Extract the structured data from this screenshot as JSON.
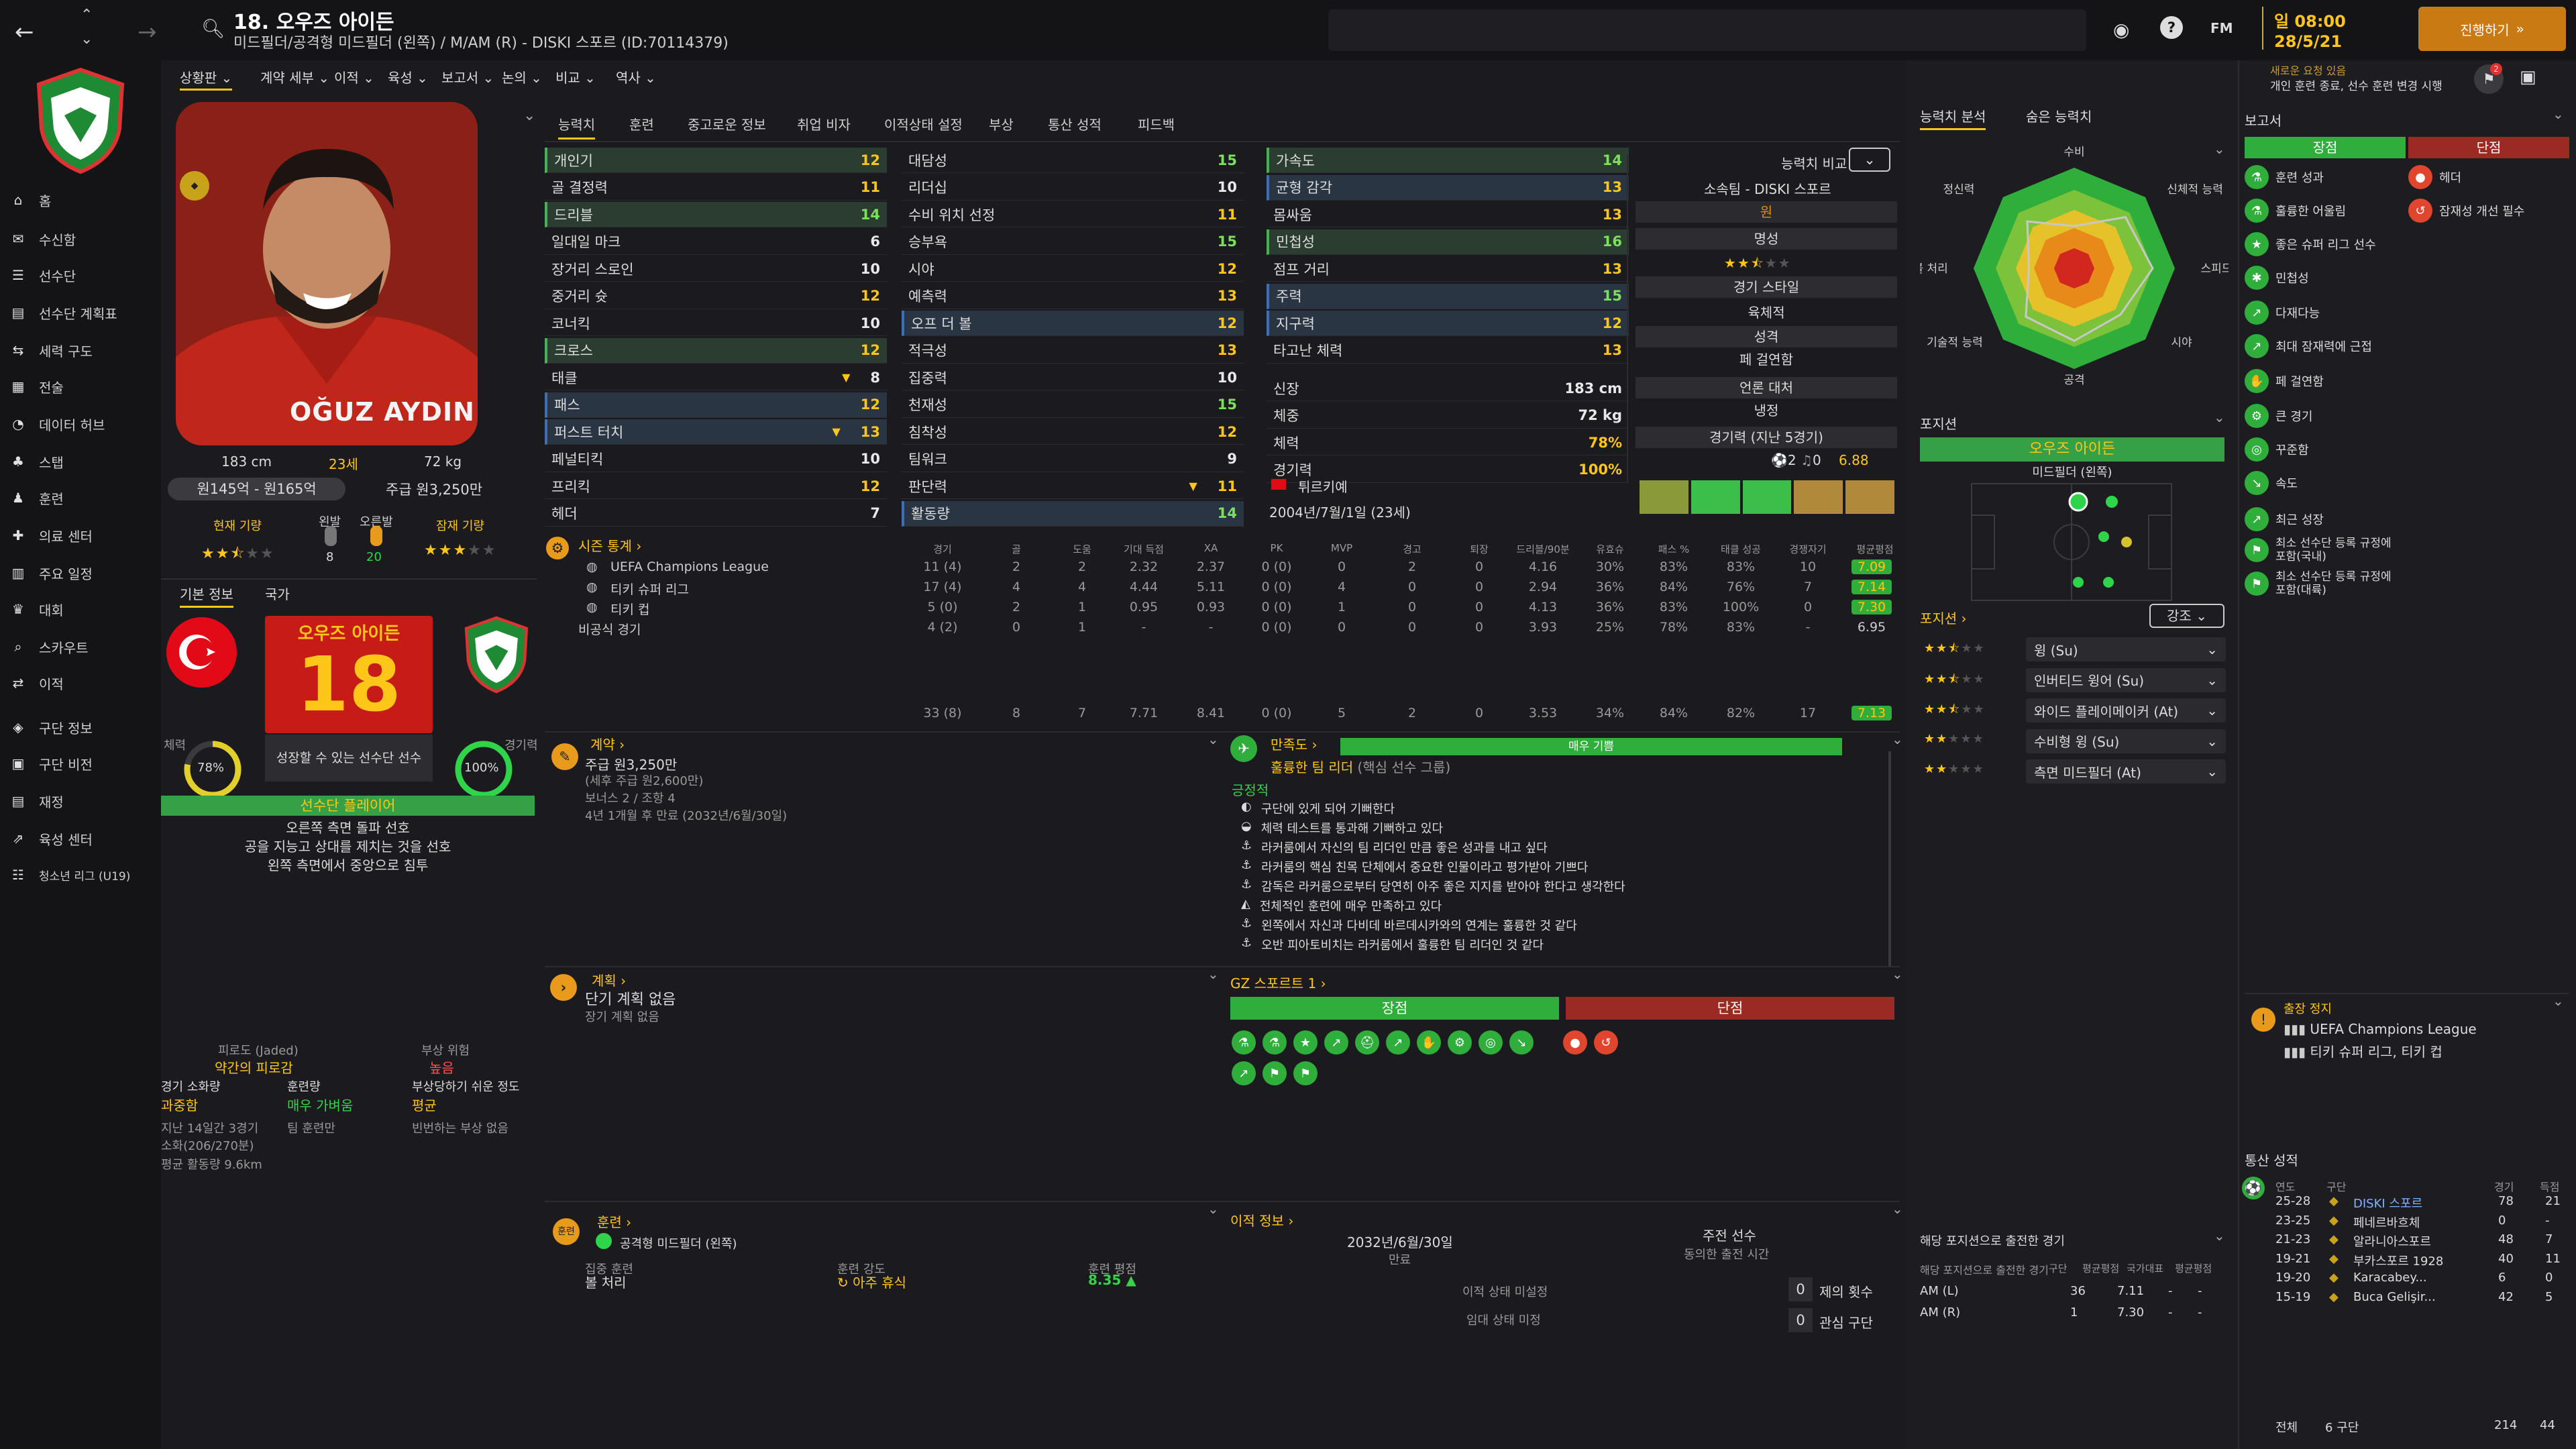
{
  "header": {
    "player_title": "18. 오우즈 아이든",
    "player_sub": "미드필더/공격형 미드필더 (왼쪽) / M/AM (R) - DISKI 스포르 (ID:70114379)",
    "date_day": "일 08:00",
    "date": "28/5/21",
    "continue_label": "진행하기",
    "notice_line1": "새로운 요청 있음",
    "notice_line2": "개인 훈련 종료, 선수 훈련 변경 시행",
    "fm_label": "FM"
  },
  "sidebar": {
    "items": [
      "홈",
      "수신함",
      "선수단",
      "선수단 계획표",
      "세력 구도",
      "전술",
      "데이터 허브",
      "스탭",
      "훈련",
      "의료 센터",
      "주요 일정",
      "대회",
      "스카우트",
      "이적",
      "구단 정보",
      "구단 비전",
      "재정",
      "육성 센터",
      "청소년 리그 (U19)"
    ]
  },
  "menu": {
    "items": [
      "상황판",
      "계약 세부",
      "이적",
      "육성",
      "보고서",
      "논의",
      "비교",
      "역사"
    ]
  },
  "profile": {
    "photo_name": "OĞUZ AYDIN",
    "height": "183 cm",
    "age": "23세",
    "weight": "72 kg",
    "value": "원145억 - 원165억",
    "wage": "주급 원3,250만",
    "current_ability_label": "현재 기량",
    "potential_label": "잠재 기량",
    "foot_left_label": "왼발",
    "foot_right_label": "오른발",
    "foot_left_val": "8",
    "foot_right_val": "20",
    "current_ability_stars": 2.5,
    "potential_stars": 3
  },
  "info_tabs": [
    "기본 정보",
    "국가"
  ],
  "card": {
    "name": "오우즈 아이든",
    "number": "18",
    "tag": "성장할 수 있는 선수단 선수",
    "fitness_label": "체력",
    "fitness": "78%",
    "fitness_value": 78,
    "sharp_label": "경기력",
    "sharp": "100%",
    "sharp_value": 100,
    "role": "선수단 플레이어",
    "desc1": "오른쪽 측면 돌파 선호",
    "desc2": "공을 지능고 상대를 제치는 것을 선호",
    "desc3": "왼쪽 측면에서 중앙으로 침투"
  },
  "condition": {
    "fatigue_label": "피로도 (Jaded)",
    "fatigue": "약간의 피로감",
    "injury_risk_label": "부상 위험",
    "injury_risk": "높음",
    "load_label": "경기 소화량",
    "load": "과중함",
    "training_label": "훈련량",
    "training": "매우 가벼움",
    "prone_label": "부상당하기 쉬운 정도",
    "prone": "평균",
    "load_detail1": "지난 14일간 3경기",
    "load_detail2": "소화(206/270분)",
    "load_detail3": "평균 활동량 9.6km",
    "training_detail": "팀 훈련만",
    "prone_detail": "빈번하는 부상 없음"
  },
  "tabs": [
    "능력치",
    "훈련",
    "중고로운 정보",
    "취업 비자",
    "이적상태 설정",
    "부상",
    "통산 성적",
    "피드백"
  ],
  "attributes": {
    "technical": [
      {
        "name": "개인기",
        "value": "12",
        "hl": "green"
      },
      {
        "name": "골 결정력",
        "value": "11"
      },
      {
        "name": "드리블",
        "value": "14",
        "hl": "green"
      },
      {
        "name": "일대일 마크",
        "value": "6"
      },
      {
        "name": "장거리 스로인",
        "value": "10"
      },
      {
        "name": "중거리 슛",
        "value": "12"
      },
      {
        "name": "코너킥",
        "value": "10"
      },
      {
        "name": "크로스",
        "value": "12",
        "hl": "green"
      },
      {
        "name": "태클",
        "value": "8",
        "arrow": true
      },
      {
        "name": "패스",
        "value": "12",
        "hl": "blue"
      },
      {
        "name": "퍼스트 터치",
        "value": "13",
        "hl": "blue",
        "arrow": true
      },
      {
        "name": "페널티킥",
        "value": "10"
      },
      {
        "name": "프리킥",
        "value": "12"
      },
      {
        "name": "헤더",
        "value": "7"
      }
    ],
    "mental": [
      {
        "name": "대담성",
        "value": "15"
      },
      {
        "name": "리더십",
        "value": "10"
      },
      {
        "name": "수비 위치 선정",
        "value": "11"
      },
      {
        "name": "승부욕",
        "value": "15"
      },
      {
        "name": "시야",
        "value": "12"
      },
      {
        "name": "예측력",
        "value": "13"
      },
      {
        "name": "오프 더 볼",
        "value": "12",
        "hl": "blue"
      },
      {
        "name": "적극성",
        "value": "13"
      },
      {
        "name": "집중력",
        "value": "10"
      },
      {
        "name": "천재성",
        "value": "15"
      },
      {
        "name": "침착성",
        "value": "12"
      },
      {
        "name": "팀워크",
        "value": "9"
      },
      {
        "name": "판단력",
        "value": "11",
        "arrow": true
      },
      {
        "name": "활동량",
        "value": "14",
        "hl": "blue"
      }
    ],
    "physical": [
      {
        "name": "가속도",
        "value": "14",
        "hl": "green"
      },
      {
        "name": "균형 감각",
        "value": "13",
        "hl": "blue"
      },
      {
        "name": "몸싸움",
        "value": "13"
      },
      {
        "name": "민첩성",
        "value": "16",
        "hl": "green"
      },
      {
        "name": "점프 거리",
        "value": "13"
      },
      {
        "name": "주력",
        "value": "15",
        "hl": "blue"
      },
      {
        "name": "지구력",
        "value": "12",
        "hl": "blue"
      },
      {
        "name": "타고난 체력",
        "value": "13"
      }
    ],
    "bio": [
      {
        "name": "신장",
        "value": "183 cm"
      },
      {
        "name": "체중",
        "value": "72 kg"
      },
      {
        "name": "체력",
        "value": "78%"
      },
      {
        "name": "경기력",
        "value": "100%"
      }
    ],
    "nation": "튀르키예",
    "birth": "2004년/7월/1일 (23세)"
  },
  "compare": {
    "label": "능력치 비교",
    "club_label": "소속팀 - DISKI 스포르",
    "wage_label": "원",
    "rep_label": "명성",
    "style_label": "경기 스타일",
    "style": "육체적",
    "personality_label": "성격",
    "personality": "페 걸연함",
    "media_label": "언론 대처",
    "media": "냉정",
    "form_label": "경기력 (지난 5경기)",
    "form_goals": "2",
    "form_assists": "0",
    "form_rating": "6.88",
    "rep_stars": 2.5
  },
  "stats": {
    "header": "시즌 통계",
    "columns": [
      "경기",
      "골",
      "도움",
      "기대 득점",
      "XA",
      "PK",
      "MVP",
      "경고",
      "퇴장",
      "드리블/90분",
      "유효슈",
      "패스 %",
      "태클 성공",
      "경쟁자기",
      "평균평점"
    ],
    "rows": [
      {
        "comp": "UEFA Champions League",
        "vals": [
          "11 (4)",
          "2",
          "2",
          "2.32",
          "2.37",
          "0 (0)",
          "0",
          "2",
          "0",
          "4.16",
          "30%",
          "83%",
          "83%",
          "10"
        ],
        "rating": "7.09"
      },
      {
        "comp": "티키 슈퍼 리그",
        "vals": [
          "17 (4)",
          "4",
          "4",
          "4.44",
          "5.11",
          "0 (0)",
          "4",
          "0",
          "0",
          "2.94",
          "36%",
          "84%",
          "76%",
          "7"
        ],
        "rating": "7.14"
      },
      {
        "comp": "티키 컵",
        "vals": [
          "5 (0)",
          "2",
          "1",
          "0.95",
          "0.93",
          "0 (0)",
          "1",
          "0",
          "0",
          "4.13",
          "36%",
          "83%",
          "100%",
          "0"
        ],
        "rating": "7.30"
      },
      {
        "comp": "비공식 경기",
        "vals": [
          "4 (2)",
          "0",
          "1",
          "-",
          "-",
          "0 (0)",
          "0",
          "0",
          "0",
          "3.93",
          "25%",
          "78%",
          "83%",
          "-"
        ],
        "rating": "6.95"
      }
    ],
    "total": {
      "vals": [
        "33 (8)",
        "8",
        "7",
        "7.71",
        "8.41",
        "0 (0)",
        "5",
        "2",
        "0",
        "3.53",
        "34%",
        "84%",
        "82%",
        "17"
      ],
      "rating": "7.13"
    }
  },
  "contract": {
    "header": "계약",
    "wage": "주급 원3,250만",
    "wage_sub": "(세후 주급 원2,600만)",
    "bonus": "보너스 2 / 조항 4",
    "expiry": "4년 1개월 후 만료 (2032년/6월/30일)"
  },
  "plan": {
    "header": "계획",
    "short": "단기 계획 없음",
    "long": "장기 계획 없음"
  },
  "satisfaction": {
    "header": "만족도",
    "bar_label": "매우 기쁨",
    "leader": "훌륭한 팀 리더",
    "leader_sub": "(핵심 선수 그룹)",
    "positive_label": "긍정적",
    "items": [
      "구단에 있게 되어 기뻐한다",
      "체력 테스트를 통과해 기뻐하고 있다",
      "라커룸에서 자신의 팀 리더인 만큼 좋은 성과를 내고 싶다",
      "라커룸의 핵심 친목 단체에서 중요한 인물이라고 평가받아 기쁘다",
      "감독은 라커룸으로부터 당연히 아주 좋은 지지를 받아야 한다고 생각한다",
      "전체적인 훈련에 매우 만족하고 있다",
      "왼쪽에서 자신과 다비데 바르데시카와의 연계는 훌륭한 것 같다",
      "오반 피아토비치는 라커룸에서 훌륭한 팀 리더인 것 같다"
    ]
  },
  "scout": {
    "header": "GZ 스포르트 1",
    "pros": "장점",
    "cons": "단점"
  },
  "training": {
    "header": "훈련",
    "position": "공격형 미드필더 (왼쪽)",
    "focus_label": "집중 훈련",
    "focus": "볼 처리",
    "intensity_label": "훈련 강도",
    "intensity": "아주 휴식",
    "rating_label": "훈련 평점",
    "rating": "8.35"
  },
  "transfer": {
    "header": "이적 정보",
    "date": "2032년/6월/30일",
    "date_label": "만료",
    "status_label": "주전 선수",
    "status_sub": "동의한 출전 시간",
    "not_set1": "이적 상태 미설정",
    "not_set2": "임대 상태 미정",
    "offers_count": "0",
    "offers_label": "제의 횟수",
    "interest_count": "0",
    "interest_label": "관심 구단"
  },
  "right_tabs": [
    "능력치 분석",
    "숨은 능력치"
  ],
  "radar": {
    "labels": [
      "수비",
      "신체적 능력",
      "스피드",
      "시야",
      "공격",
      "기술적 능력",
      "공중볼 처리",
      "정신력"
    ],
    "values": [
      0.42,
      0.72,
      0.78,
      0.65,
      0.72,
      0.68,
      0.45,
      0.66
    ]
  },
  "positions": {
    "header": "포지션",
    "name": "오우즈 아이든",
    "main": "미드필더 (왼쪽)"
  },
  "roles": {
    "header": "포지션",
    "emphasis": "강조",
    "items": [
      {
        "label": "윙 (Su)",
        "stars": 2.5
      },
      {
        "label": "인버티드 윙어 (Su)",
        "stars": 2.5
      },
      {
        "label": "와이드 플레이메이커 (At)",
        "stars": 2.5
      },
      {
        "label": "수비형 윙 (Su)",
        "stars": 2
      },
      {
        "label": "측면 미드필더 (At)",
        "stars": 2
      }
    ]
  },
  "pos_apps": {
    "header": "해당 포지션으로 출전한 경기",
    "cols_label": "해당 포지션으로 출전한 경기",
    "cols": [
      "구단",
      "평균평점",
      "국가대표",
      "평균평점"
    ],
    "rows": [
      {
        "pos": "AM (L)",
        "apps": "36",
        "rating": "7.11",
        "intl": "-",
        "intl_rating": "-"
      },
      {
        "pos": "AM (R)",
        "apps": "1",
        "rating": "7.30",
        "intl": "-",
        "intl_rating": "-"
      }
    ]
  },
  "report": {
    "header": "보고서",
    "pros": "장점",
    "cons": "단점",
    "pro_items": [
      "훈련 성과",
      "훌륭한 어울림",
      "좋은 슈퍼 리그 선수",
      "민첩성",
      "다재다능",
      "최대 잠재력에 근접",
      "페 걸연함",
      "큰 경기",
      "꾸준함",
      "속도",
      "최근 성장",
      "최소 선수단 등록 규정에 포함(국내)",
      "최소 선수단 등록 규정에 포함(대륙)"
    ],
    "con_items": [
      "헤더",
      "잠재성 개선 필수"
    ]
  },
  "suspension": {
    "header": "출장 정지",
    "items": [
      "UEFA Champions League",
      "티키 슈퍼 리그, 티키 컵"
    ]
  },
  "career": {
    "header": "통산 성적",
    "cols": [
      "연도",
      "구단",
      "경기",
      "득점"
    ],
    "rows": [
      {
        "year": "25-28",
        "club": "DISKI 스포르",
        "apps": "78",
        "goals": "21",
        "hl": true
      },
      {
        "year": "23-25",
        "club": "페네르바흐체",
        "apps": "0",
        "goals": "-"
      },
      {
        "year": "21-23",
        "club": "알라니아스포르",
        "apps": "48",
        "goals": "7"
      },
      {
        "year": "19-21",
        "club": "부카스포르 1928",
        "apps": "40",
        "goals": "11"
      },
      {
        "year": "19-20",
        "club": "Karacabey...",
        "apps": "6",
        "goals": "0"
      },
      {
        "year": "15-19",
        "club": "Buca Gelişir...",
        "apps": "42",
        "goals": "5"
      }
    ],
    "total_label": "전체",
    "total_clubs": "6 구단",
    "total_apps": "214",
    "total_goals": "44"
  },
  "colors": {
    "accent": "#ffc61a",
    "green": "#2fae3c",
    "red": "#b82a22"
  }
}
